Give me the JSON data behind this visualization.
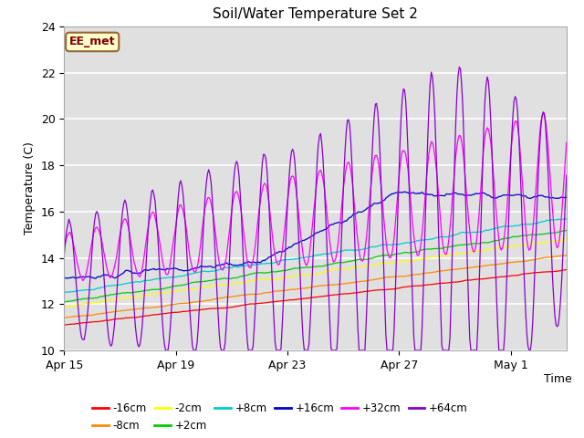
{
  "title": "Soil/Water Temperature Set 2",
  "ylabel": "Temperature (C)",
  "ylim": [
    10,
    24
  ],
  "yticks": [
    10,
    12,
    14,
    16,
    18,
    20,
    22,
    24
  ],
  "xtick_labels": [
    "Apr 15",
    "Apr 19",
    "Apr 23",
    "Apr 27",
    "May 1"
  ],
  "xtick_positions": [
    0,
    4,
    8,
    12,
    16
  ],
  "total_days": 18,
  "background_color": "#ffffff",
  "plot_bg_color": "#e0e0e0",
  "grid_color": "#ffffff",
  "legend_label": "EE_met",
  "legend_bg": "#ffffcc",
  "legend_border": "#996633",
  "series": [
    {
      "label": "-16cm",
      "color": "#ff0000"
    },
    {
      "label": "-8cm",
      "color": "#ff8800"
    },
    {
      "label": "-2cm",
      "color": "#ffff00"
    },
    {
      "label": "+2cm",
      "color": "#00cc00"
    },
    {
      "label": "+8cm",
      "color": "#00cccc"
    },
    {
      "label": "+16cm",
      "color": "#0000cc"
    },
    {
      "label": "+32cm",
      "color": "#ff00ff"
    },
    {
      "label": "+64cm",
      "color": "#8800cc"
    }
  ]
}
